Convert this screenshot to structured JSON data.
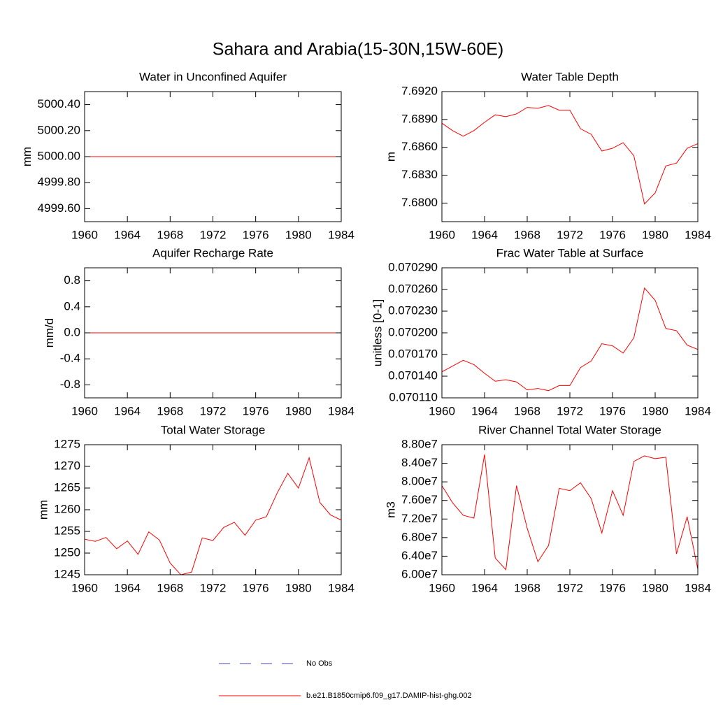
{
  "title": "Sahara and Arabia(15-30N,15W-60E)",
  "legend": [
    {
      "name": "No Obs",
      "color": "#4a4aa8",
      "style": "dashed"
    },
    {
      "name": "b.e21.B1850cmip6.f09_g17.DAMIP-hist-ghg.002",
      "color": "#ff0000",
      "style": "solid"
    }
  ],
  "chart_data": [
    {
      "type": "line",
      "title": "Water in Unconfined Aquifer",
      "y_label": "mm",
      "color": "#ff0000",
      "x": [
        1960,
        1961,
        1962,
        1963,
        1964,
        1965,
        1966,
        1967,
        1968,
        1969,
        1970,
        1971,
        1972,
        1973,
        1974,
        1975,
        1976,
        1977,
        1978,
        1979,
        1980,
        1981,
        1982,
        1983,
        1984
      ],
      "values": [
        5000,
        5000,
        5000,
        5000,
        5000,
        5000,
        5000,
        5000,
        5000,
        5000,
        5000,
        5000,
        5000,
        5000,
        5000,
        5000,
        5000,
        5000,
        5000,
        5000,
        5000,
        5000,
        5000,
        5000,
        5000
      ],
      "xlim": [
        1960,
        1984
      ],
      "xticks": [
        1960,
        1964,
        1968,
        1972,
        1976,
        1980,
        1984
      ],
      "ylim": [
        4999.5,
        5000.5
      ],
      "yticks": [
        {
          "value": 5000.4,
          "label": "5000.40"
        },
        {
          "value": 5000.2,
          "label": "5000.20"
        },
        {
          "value": 5000,
          "label": "5000.00"
        },
        {
          "value": 4999.8,
          "label": "4999.80"
        },
        {
          "value": 4999.6,
          "label": "4999.60"
        }
      ]
    },
    {
      "type": "line",
      "title": "Water Table Depth",
      "y_label": "m",
      "color": "#ff0000",
      "x": [
        1960,
        1961,
        1962,
        1963,
        1964,
        1965,
        1966,
        1967,
        1968,
        1969,
        1970,
        1971,
        1972,
        1973,
        1974,
        1975,
        1976,
        1977,
        1978,
        1979,
        1980,
        1981,
        1982,
        1983,
        1984
      ],
      "values": [
        7.6886,
        7.6878,
        7.6872,
        7.6878,
        7.6887,
        7.6895,
        7.6893,
        7.6896,
        7.6903,
        7.6902,
        7.6905,
        7.69,
        7.69,
        7.688,
        7.6874,
        7.6856,
        7.6859,
        7.6865,
        7.6851,
        7.6799,
        7.6811,
        7.684,
        7.6843,
        7.6859,
        7.6864
      ],
      "xlim": [
        1960,
        1984
      ],
      "xticks": [
        1960,
        1964,
        1968,
        1972,
        1976,
        1980,
        1984
      ],
      "ylim": [
        7.678,
        7.692
      ],
      "yticks": [
        {
          "value": 7.692,
          "label": "7.6920"
        },
        {
          "value": 7.689,
          "label": "7.6890"
        },
        {
          "value": 7.686,
          "label": "7.6860"
        },
        {
          "value": 7.683,
          "label": "7.6830"
        },
        {
          "value": 7.68,
          "label": "7.6800"
        }
      ]
    },
    {
      "type": "line",
      "title": "Aquifer Recharge Rate",
      "y_label": "mm/d",
      "color": "#ff0000",
      "x": [
        1960,
        1961,
        1962,
        1963,
        1964,
        1965,
        1966,
        1967,
        1968,
        1969,
        1970,
        1971,
        1972,
        1973,
        1974,
        1975,
        1976,
        1977,
        1978,
        1979,
        1980,
        1981,
        1982,
        1983,
        1984
      ],
      "values": [
        0,
        0,
        0,
        0,
        0,
        0,
        0,
        0,
        0,
        0,
        0,
        0,
        0,
        0,
        0,
        0,
        0,
        0,
        0,
        0,
        0,
        0,
        0,
        0,
        0
      ],
      "xlim": [
        1960,
        1984
      ],
      "xticks": [
        1960,
        1964,
        1968,
        1972,
        1976,
        1980,
        1984
      ],
      "ylim": [
        -1,
        1
      ],
      "yticks": [
        0.8,
        0.4,
        {
          "value": 0,
          "label": "0.0"
        },
        -0.4,
        -0.8
      ]
    },
    {
      "type": "line",
      "title": "Frac Water Table at Surface",
      "y_label": "unitless [0-1]",
      "color": "#ff0000",
      "x": [
        1960,
        1961,
        1962,
        1963,
        1964,
        1965,
        1966,
        1967,
        1968,
        1969,
        1970,
        1971,
        1972,
        1973,
        1974,
        1975,
        1976,
        1977,
        1978,
        1979,
        1980,
        1981,
        1982,
        1983,
        1984
      ],
      "values": [
        0.070146,
        0.070154,
        0.070162,
        0.070156,
        0.070144,
        0.070133,
        0.070135,
        0.070132,
        0.070121,
        0.070123,
        0.07012,
        0.070127,
        0.070127,
        0.070152,
        0.070161,
        0.070185,
        0.070182,
        0.070172,
        0.070193,
        0.070262,
        0.070245,
        0.070206,
        0.070203,
        0.070183,
        0.070177
      ],
      "xlim": [
        1960,
        1984
      ],
      "xticks": [
        1960,
        1964,
        1968,
        1972,
        1976,
        1980,
        1984
      ],
      "ylim": [
        0.07011,
        0.07029
      ],
      "yticks": [
        {
          "value": 0.07029,
          "label": "0.070290"
        },
        {
          "value": 0.07026,
          "label": "0.070260"
        },
        {
          "value": 0.07023,
          "label": "0.070230"
        },
        {
          "value": 0.0702,
          "label": "0.070200"
        },
        {
          "value": 0.07017,
          "label": "0.070170"
        },
        {
          "value": 0.07014,
          "label": "0.070140"
        },
        {
          "value": 0.07011,
          "label": "0.070110"
        }
      ]
    },
    {
      "type": "line",
      "title": "Total Water Storage",
      "y_label": "mm",
      "color": "#ff0000",
      "x": [
        1960,
        1961,
        1962,
        1963,
        1964,
        1965,
        1966,
        1967,
        1968,
        1969,
        1970,
        1971,
        1972,
        1973,
        1974,
        1975,
        1976,
        1977,
        1978,
        1979,
        1980,
        1981,
        1982,
        1983,
        1984
      ],
      "values": [
        1253.2,
        1252.7,
        1253.6,
        1251.0,
        1252.8,
        1249.7,
        1254.9,
        1253.0,
        1247.7,
        1245.0,
        1245.6,
        1253.5,
        1252.9,
        1255.9,
        1257.1,
        1254.1,
        1257.6,
        1258.4,
        1263.8,
        1268.4,
        1265.0,
        1272.0,
        1261.7,
        1258.8,
        1257.6
      ],
      "xlim": [
        1960,
        1984
      ],
      "xticks": [
        1960,
        1964,
        1968,
        1972,
        1976,
        1980,
        1984
      ],
      "ylim": [
        1245,
        1275
      ],
      "yticks": [
        1275,
        1270,
        1265,
        1260,
        1255,
        1250,
        1245
      ]
    },
    {
      "type": "line",
      "title": "River Channel Total Water Storage",
      "y_label": "m3",
      "color": "#ff0000",
      "x": [
        1960,
        1961,
        1962,
        1963,
        1964,
        1965,
        1966,
        1967,
        1968,
        1969,
        1970,
        1971,
        1972,
        1973,
        1974,
        1975,
        1976,
        1977,
        1978,
        1979,
        1980,
        1981,
        1982,
        1983,
        1984
      ],
      "values": [
        79200000,
        75500000,
        72800000,
        72200000,
        85900000,
        63600000,
        61100000,
        79200000,
        70000000,
        62800000,
        66300000,
        78600000,
        78100000,
        79800000,
        76400000,
        69000000,
        78100000,
        72800000,
        84400000,
        85600000,
        85000000,
        85300000,
        64500000,
        72500000,
        61200000
      ],
      "xlim": [
        1960,
        1984
      ],
      "xticks": [
        1960,
        1964,
        1968,
        1972,
        1976,
        1980,
        1984
      ],
      "ylim": [
        60000000,
        88000000
      ],
      "yticks": [
        {
          "value": 88000000,
          "label": "8.80e7"
        },
        {
          "value": 84000000,
          "label": "8.40e7"
        },
        {
          "value": 80000000,
          "label": "8.00e7"
        },
        {
          "value": 76000000,
          "label": "7.60e7"
        },
        {
          "value": 72000000,
          "label": "7.20e7"
        },
        {
          "value": 68000000,
          "label": "6.80e7"
        },
        {
          "value": 64000000,
          "label": "6.40e7"
        },
        {
          "value": 60000000,
          "label": "6.00e7"
        }
      ]
    }
  ]
}
